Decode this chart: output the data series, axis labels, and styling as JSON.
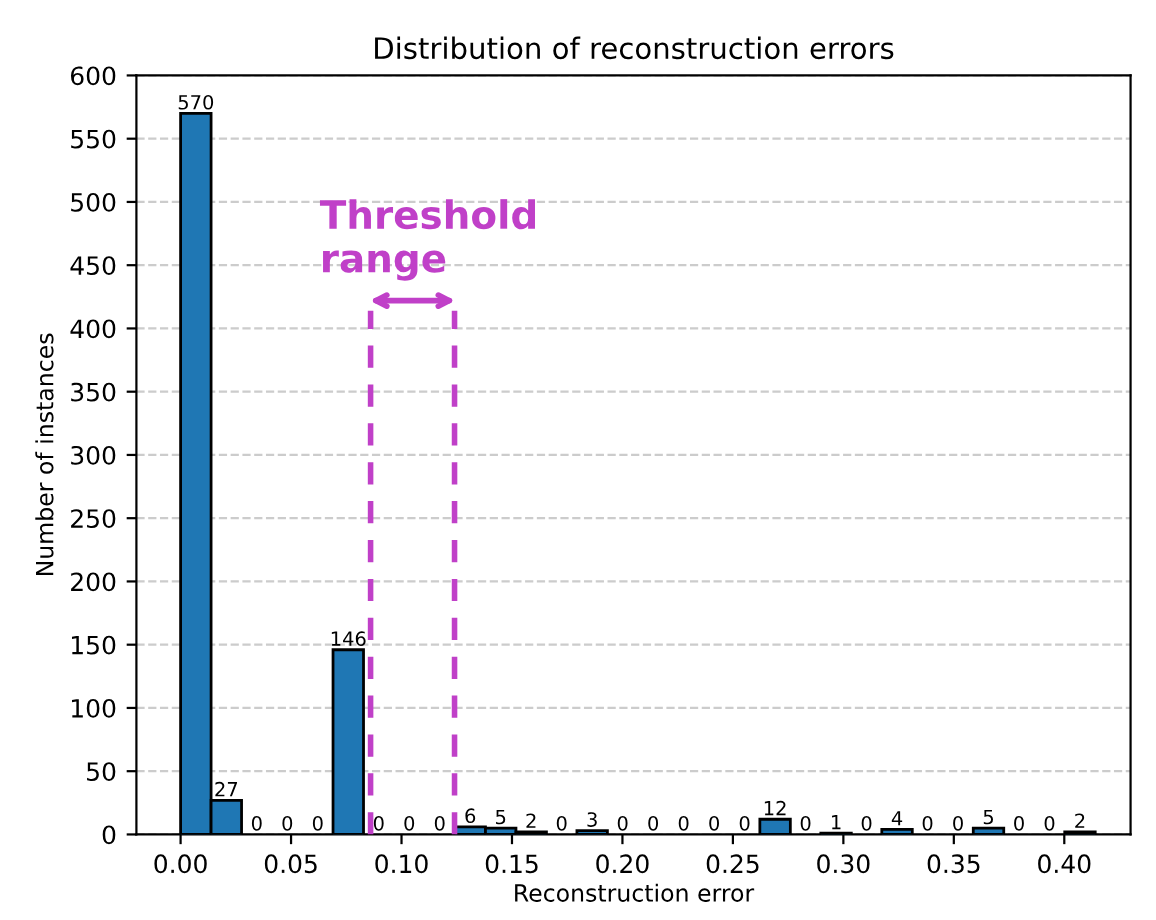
{
  "chart_data": {
    "type": "histogram",
    "title": "Distribution of reconstruction errors",
    "xlabel": "Reconstruction error",
    "ylabel": "Number of instances",
    "bins": [
      0,
      0.0138,
      0.0276,
      0.0414,
      0.0552,
      0.069,
      0.0828,
      0.0966,
      0.1104,
      0.1242,
      0.138,
      0.1518,
      0.1656,
      0.1794,
      0.1932,
      0.207,
      0.2208,
      0.2346,
      0.2484,
      0.2622,
      0.276,
      0.2898,
      0.3036,
      0.3174,
      0.3312,
      0.345,
      0.3588,
      0.3726,
      0.3864,
      0.4002,
      0.414
    ],
    "values": [
      570,
      27,
      0,
      0,
      0,
      146,
      0,
      0,
      0,
      6,
      5,
      2,
      0,
      3,
      0,
      0,
      0,
      0,
      0,
      12,
      0,
      1,
      0,
      4,
      0,
      0,
      5,
      0,
      0,
      2
    ],
    "color": "#1f77b4",
    "data_labels": true,
    "grid": "y",
    "xlim": [
      -0.02,
      0.43
    ],
    "xticks": [
      {
        "value": 0,
        "label": "0.00"
      },
      0.05,
      {
        "value": 0.1,
        "label": "0.10"
      },
      0.15,
      {
        "value": 0.2,
        "label": "0.20"
      },
      0.25,
      {
        "value": 0.3,
        "label": "0.30"
      },
      0.35,
      {
        "value": 0.4,
        "label": "0.40"
      }
    ],
    "ylim": [
      0,
      600
    ],
    "yticks": [
      0,
      50,
      100,
      150,
      200,
      250,
      300,
      350,
      400,
      450,
      500,
      550,
      600
    ],
    "ref_lines": [
      {
        "axis": "x",
        "value": 0.086,
        "color": "#c040c8",
        "line_style": "dashed"
      },
      {
        "axis": "x",
        "value": 0.124,
        "color": "#c040c8",
        "line_style": "dashed"
      }
    ],
    "annotations": [
      "Threshold\nrange"
    ]
  }
}
